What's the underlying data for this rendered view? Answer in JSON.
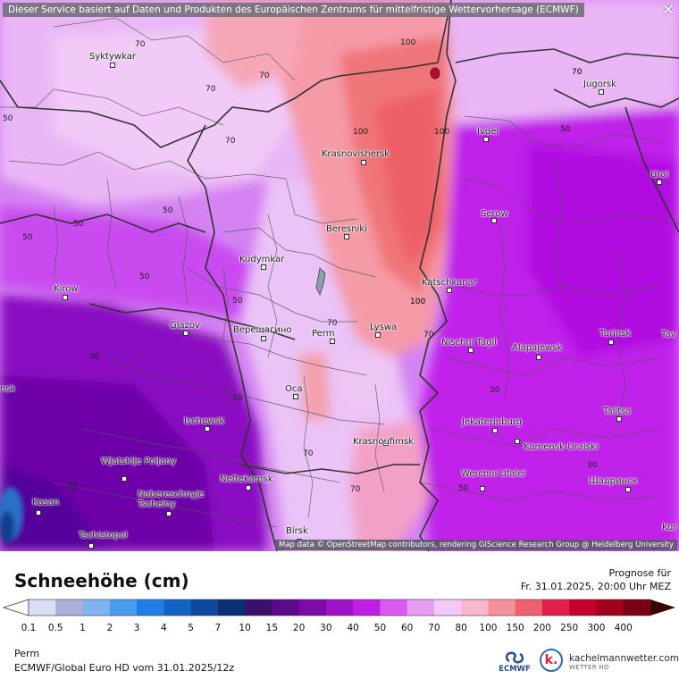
{
  "banner": {
    "service_text": "Dieser Service basiert auf Daten und Produkten des Europäischen Zentrums für mittelfristige Wettervorhersage (ECMWF)",
    "close_icon": "×"
  },
  "map": {
    "attribution": "Map data © OpenStreetMap contributors, rendering GIScience Research Group @ Heidelberg University",
    "cities": [
      {
        "name": "Syktywkar"
      },
      {
        "name": "Jugorsk"
      },
      {
        "name": "Ivdel"
      },
      {
        "name": "Krasnovishersk"
      },
      {
        "name": "Urai"
      },
      {
        "name": "Serow"
      },
      {
        "name": "Beresniki"
      },
      {
        "name": "Kudymkar"
      },
      {
        "name": "Kirow"
      },
      {
        "name": "Katschkanar"
      },
      {
        "name": "Glazov"
      },
      {
        "name": "Верещагино"
      },
      {
        "name": "Perm"
      },
      {
        "name": "Lyswa"
      },
      {
        "name": "Nischni Tagil"
      },
      {
        "name": "Alapajewsk"
      },
      {
        "name": "Turinsk"
      },
      {
        "name": "Tav"
      },
      {
        "name": "nsk"
      },
      {
        "name": "Oca"
      },
      {
        "name": "Talitsa"
      },
      {
        "name": "Ischewsk"
      },
      {
        "name": "Jekaterinburg"
      },
      {
        "name": "Krasnoufimsk"
      },
      {
        "name": "Kamensk-Uralski"
      },
      {
        "name": "Wjatskije Poljany"
      },
      {
        "name": "Neftekamsk"
      },
      {
        "name": "Werchni Ufalei"
      },
      {
        "name": "Шадринск"
      },
      {
        "name": "Nabereschnyje Tschelny"
      },
      {
        "name": "Kasan"
      },
      {
        "name": "Kur"
      },
      {
        "name": "Tschistopol"
      },
      {
        "name": "Birsk"
      }
    ],
    "contour_labels": [
      "70",
      "100",
      "70",
      "70",
      "70",
      "100",
      "70",
      "50",
      "70",
      "100",
      "100",
      "50",
      "50",
      "50",
      "50",
      "50",
      "100",
      "50",
      "70",
      "70",
      "30",
      "50",
      "30",
      "30",
      "70",
      "50",
      "70",
      "30"
    ]
  },
  "legend": {
    "title": "Schneehöhe (cm)",
    "forecast_label": "Prognose für",
    "forecast_time": "Fr. 31.01.2025, 20:00 Uhr MEZ",
    "scale_ticks": [
      "0.1",
      "0.5",
      "1",
      "2",
      "3",
      "4",
      "5",
      "7",
      "10",
      "15",
      "20",
      "30",
      "40",
      "50",
      "60",
      "70",
      "80",
      "100",
      "150",
      "200",
      "250",
      "300",
      "400"
    ],
    "scale_colors": [
      "#d9ddf5",
      "#a9b1d8",
      "#7fb4f2",
      "#4a9cf0",
      "#1e7fe8",
      "#1363c7",
      "#0d4aa0",
      "#0a2f74",
      "#3a0f6a",
      "#5c0a8c",
      "#7e0aa8",
      "#9f12c9",
      "#c21fe6",
      "#d95af0",
      "#e89cf5",
      "#f2c9f7",
      "#f6b7cf",
      "#f5919a",
      "#f06070",
      "#e01f4a",
      "#c4002c",
      "#a3001d",
      "#7a0012"
    ]
  },
  "footer": {
    "location": "Perm",
    "model_run": "ECMWF/Global Euro HD vom  31.01.2025/12z",
    "ecmwf_logo_text": "ECMWF",
    "site_name": "kachelmannwetter.com",
    "site_sub": "WETTER HD",
    "site_logo_letter": "k."
  }
}
